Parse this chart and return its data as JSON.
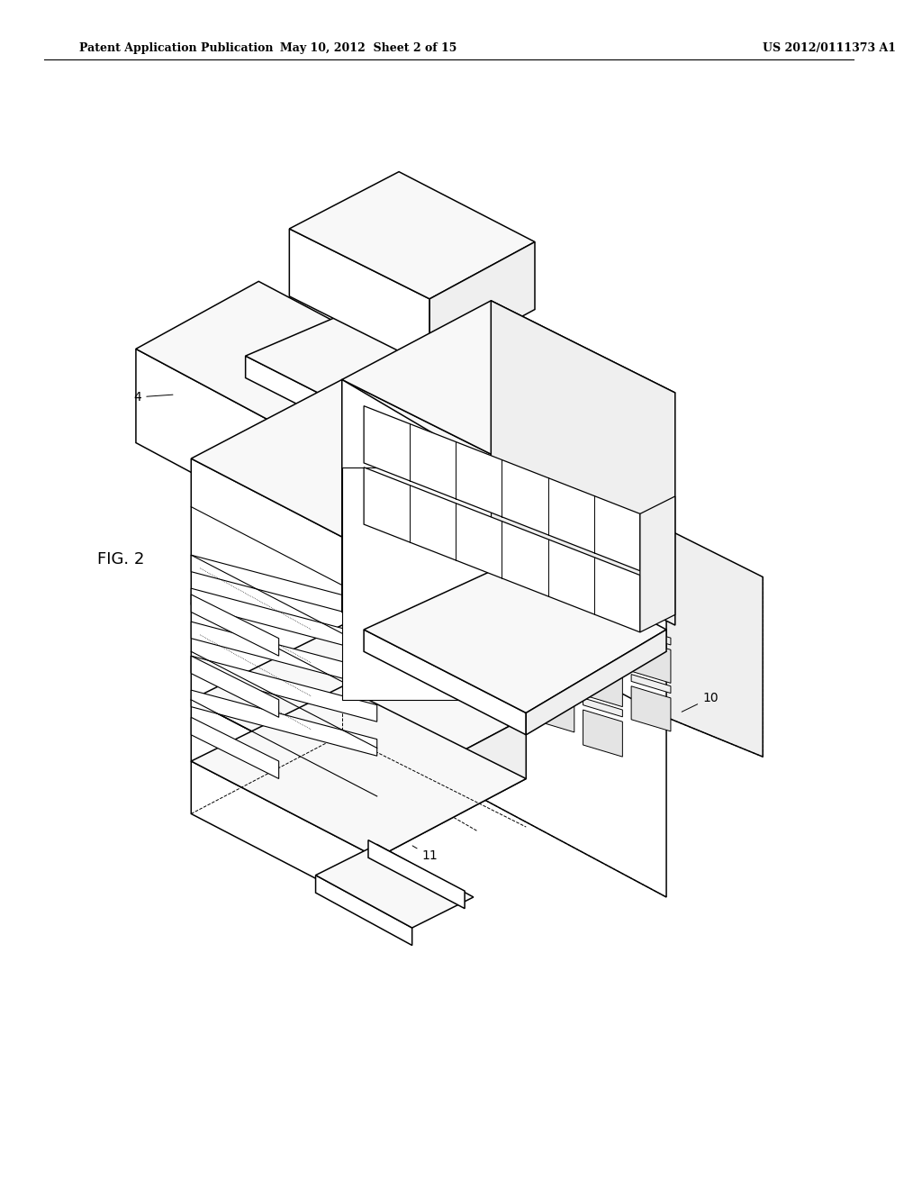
{
  "header_left": "Patent Application Publication",
  "header_mid": "May 10, 2012  Sheet 2 of 15",
  "header_right": "US 2012/0111373 A1",
  "fig_label": "FIG. 2",
  "bg_color": "#ffffff",
  "lc": "#000000",
  "fc_white": "#ffffff",
  "fc_light": "#f8f8f8",
  "fc_mid": "#efefef",
  "fc_dark": "#e4e4e4"
}
